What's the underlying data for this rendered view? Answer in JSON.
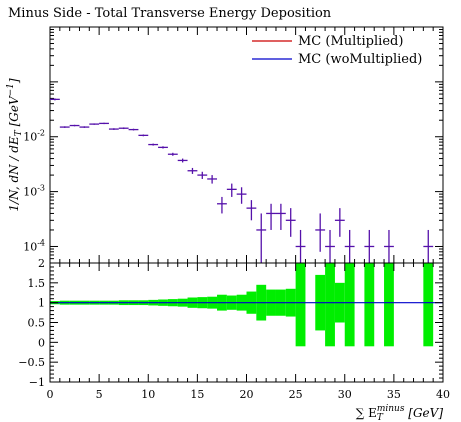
{
  "chart_data": [
    {
      "type": "line",
      "title": "Minus Side - Total Transverse Energy Deposition",
      "ylabel": "1/N, dN / dE_T [GeV^-1]",
      "yscale": "log",
      "ylim": [
        5e-05,
        1.0
      ],
      "xlim": [
        0,
        40
      ],
      "ytick_labels": [
        "10^-2",
        "10^-3",
        "10^-4"
      ],
      "legend_position": "top-right",
      "legend": [
        {
          "name": "MC (Multiplied)",
          "color": "#cc0000"
        },
        {
          "name": "MC (woMultiplied)",
          "color": "#0000cc"
        }
      ],
      "marker_color": "#5511aa",
      "x": [
        0.5,
        1.5,
        2.5,
        3.5,
        4.5,
        5.5,
        6.5,
        7.5,
        8.5,
        9.5,
        10.5,
        11.5,
        12.5,
        13.5,
        14.5,
        15.5,
        16.5,
        17.5,
        18.5,
        19.5,
        20.5,
        21.5,
        22.5,
        23.5,
        24.5,
        25.5,
        27.5,
        28.5,
        29.5,
        30.5,
        32.5,
        34.5,
        38.5
      ],
      "y": [
        0.048,
        0.015,
        0.016,
        0.015,
        0.017,
        0.0175,
        0.0138,
        0.0143,
        0.0135,
        0.0106,
        0.0072,
        0.0064,
        0.0048,
        0.0037,
        0.0024,
        0.002,
        0.0017,
        0.0006,
        0.0011,
        0.0009,
        0.0005,
        0.0002,
        0.0004,
        0.0004,
        0.0003,
        0.0001,
        0.0002,
        0.0001,
        0.0003,
        0.0001,
        0.0001,
        0.0001,
        0.0001
      ],
      "y_err_low": [
        0.002,
        0.0005,
        0.0005,
        0.0005,
        0.0005,
        0.0005,
        0.0005,
        0.0005,
        0.0005,
        0.0004,
        0.0003,
        0.0003,
        0.0003,
        0.0003,
        0.0003,
        0.0003,
        0.0003,
        0.0002,
        0.0003,
        0.0003,
        0.0002,
        0.00015,
        0.0002,
        0.0002,
        0.00015,
        7e-05,
        0.00012,
        7e-05,
        0.00015,
        7e-05,
        7e-05,
        7e-05,
        7e-05
      ],
      "y_err_high": [
        0.002,
        0.0005,
        0.0005,
        0.0005,
        0.0005,
        0.0005,
        0.0005,
        0.0005,
        0.0005,
        0.0004,
        0.0003,
        0.0003,
        0.0003,
        0.0003,
        0.0003,
        0.0003,
        0.0003,
        0.0002,
        0.0003,
        0.0003,
        0.0002,
        0.0002,
        0.0002,
        0.0002,
        0.0002,
        0.0001,
        0.0002,
        0.0001,
        0.0002,
        0.0001,
        0.0001,
        0.0001,
        0.0001
      ]
    },
    {
      "type": "bar",
      "xlabel": "∑ E_T^minus [GeV]",
      "xlim": [
        0,
        40
      ],
      "ylim": [
        -1,
        2
      ],
      "xticks": [
        0,
        5,
        10,
        15,
        20,
        25,
        30,
        35,
        40
      ],
      "yticks": [
        -1,
        -0.5,
        0,
        0.5,
        1,
        1.5,
        2
      ],
      "ytick_labels": [
        "−1",
        "−0.5",
        "0",
        "0.5",
        "1",
        "1.5",
        "2"
      ],
      "band_color": "#00ee00",
      "reference_line": 1,
      "reference_color": "#0000cc",
      "bins": [
        [
          0,
          1,
          0.96,
          1.04
        ],
        [
          1,
          2,
          0.95,
          1.05
        ],
        [
          2,
          3,
          0.95,
          1.05
        ],
        [
          3,
          4,
          0.95,
          1.05
        ],
        [
          4,
          5,
          0.95,
          1.05
        ],
        [
          5,
          6,
          0.95,
          1.05
        ],
        [
          6,
          7,
          0.95,
          1.05
        ],
        [
          7,
          8,
          0.94,
          1.06
        ],
        [
          8,
          9,
          0.94,
          1.06
        ],
        [
          9,
          10,
          0.94,
          1.06
        ],
        [
          10,
          11,
          0.93,
          1.07
        ],
        [
          11,
          12,
          0.92,
          1.08
        ],
        [
          12,
          13,
          0.91,
          1.09
        ],
        [
          13,
          14,
          0.9,
          1.1
        ],
        [
          14,
          15,
          0.87,
          1.13
        ],
        [
          15,
          16,
          0.86,
          1.14
        ],
        [
          16,
          17,
          0.85,
          1.15
        ],
        [
          17,
          18,
          0.8,
          1.2
        ],
        [
          18,
          19,
          0.82,
          1.18
        ],
        [
          19,
          20,
          0.8,
          1.2
        ],
        [
          20,
          21,
          0.72,
          1.28
        ],
        [
          21,
          22,
          0.55,
          1.45
        ],
        [
          22,
          23,
          0.67,
          1.33
        ],
        [
          23,
          24,
          0.67,
          1.33
        ],
        [
          24,
          25,
          0.65,
          1.35
        ],
        [
          25,
          26,
          -0.1,
          2.0
        ],
        [
          27,
          28,
          0.3,
          1.7
        ],
        [
          28,
          29,
          -0.1,
          2.0
        ],
        [
          29,
          30,
          0.5,
          1.5
        ],
        [
          30,
          31,
          -0.1,
          2.0
        ],
        [
          32,
          33,
          -0.1,
          2.0
        ],
        [
          34,
          35,
          -0.1,
          2.0
        ],
        [
          38,
          39,
          -0.1,
          2.0
        ]
      ]
    }
  ]
}
